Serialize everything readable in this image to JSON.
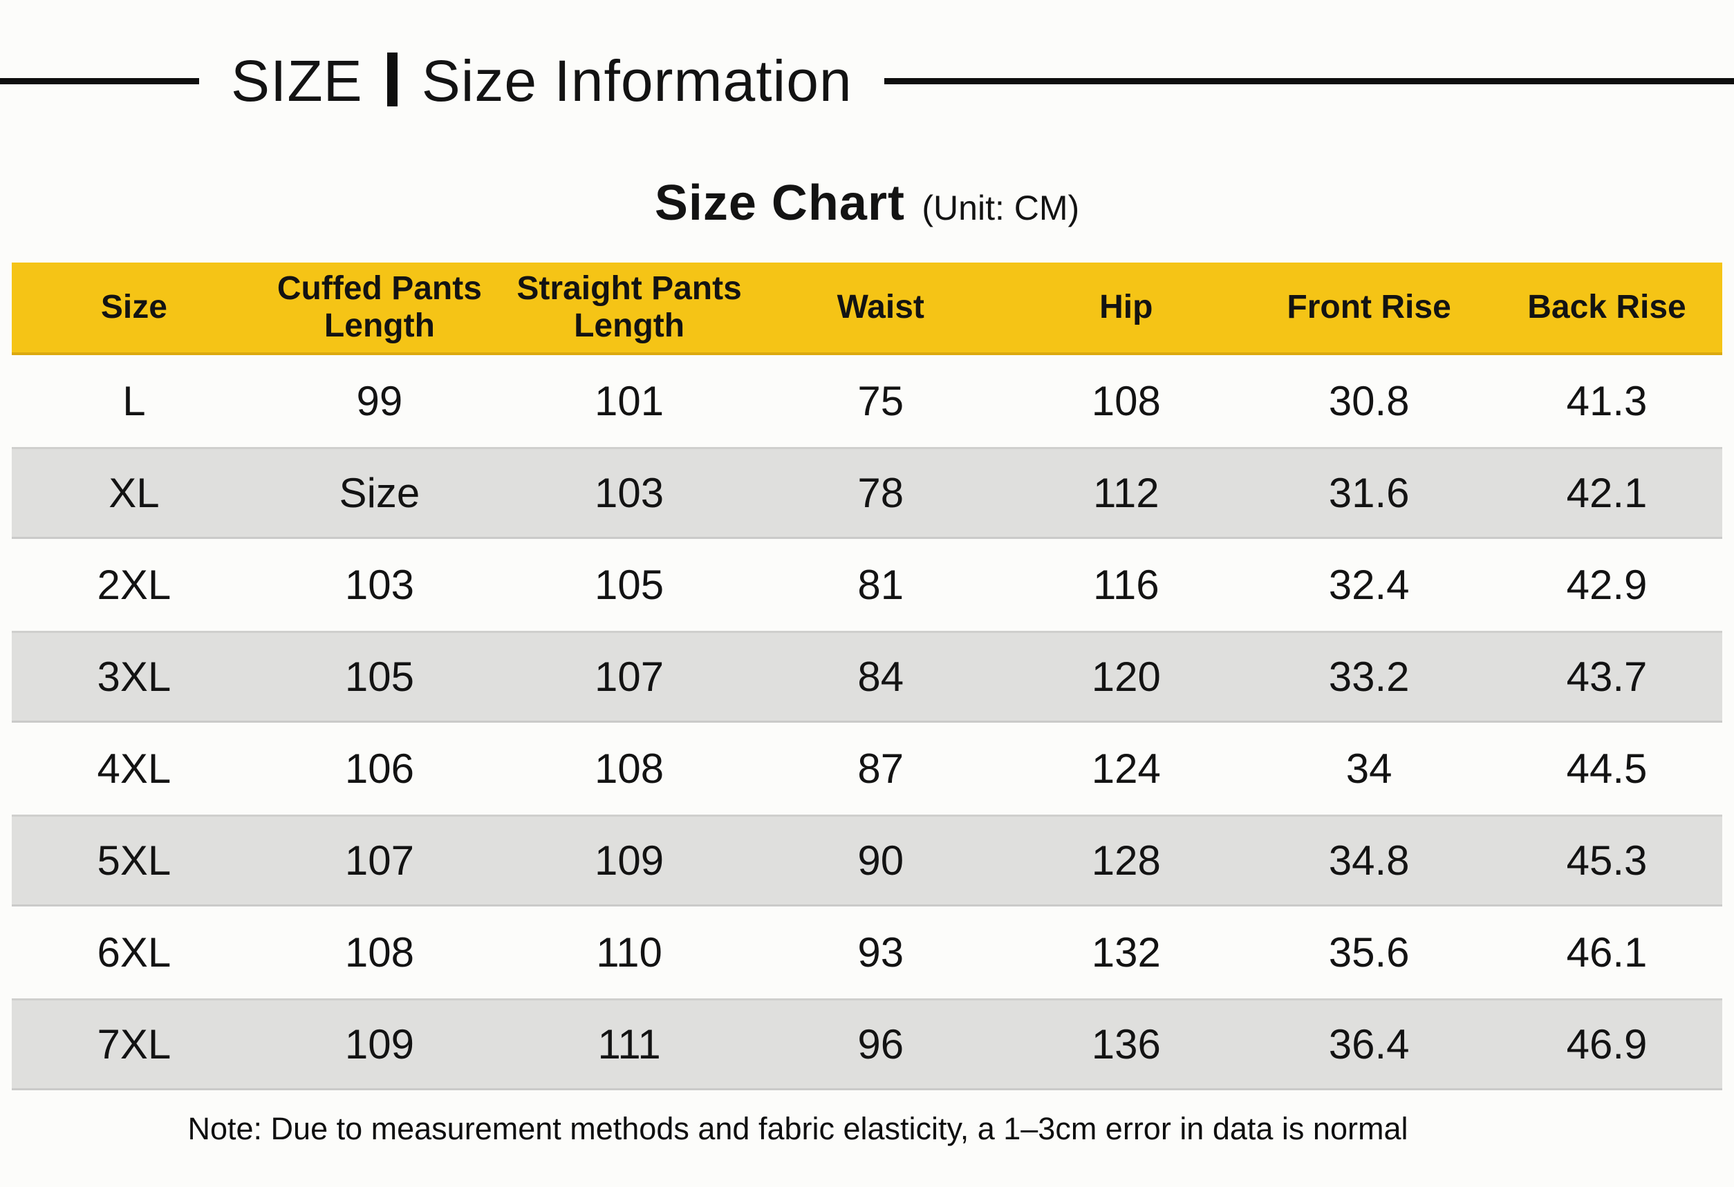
{
  "header": {
    "label_left": "SIZE",
    "label_right": "Size Information"
  },
  "chart_title": {
    "main": "Size Chart",
    "unit": "(Unit: CM)"
  },
  "chart_data": {
    "type": "table",
    "title": "Size Chart",
    "unit": "CM",
    "columns": [
      "Size",
      "Cuffed Pants Length",
      "Straight Pants Length",
      "Waist",
      "Hip",
      "Front Rise",
      "Back Rise"
    ],
    "rows": [
      [
        "L",
        "99",
        "101",
        "75",
        "108",
        "30.8",
        "41.3"
      ],
      [
        "XL",
        "Size",
        "103",
        "78",
        "112",
        "31.6",
        "42.1"
      ],
      [
        "2XL",
        "103",
        "105",
        "81",
        "116",
        "32.4",
        "42.9"
      ],
      [
        "3XL",
        "105",
        "107",
        "84",
        "120",
        "33.2",
        "43.7"
      ],
      [
        "4XL",
        "106",
        "108",
        "87",
        "124",
        "34",
        "44.5"
      ],
      [
        "5XL",
        "107",
        "109",
        "90",
        "128",
        "34.8",
        "45.3"
      ],
      [
        "6XL",
        "108",
        "110",
        "93",
        "132",
        "35.6",
        "46.1"
      ],
      [
        "7XL",
        "109",
        "111",
        "96",
        "136",
        "36.4",
        "46.9"
      ]
    ],
    "layout": {
      "header_row_style": "yellow",
      "zebra_striping": "white-gray alternating starting white",
      "grid": false
    }
  },
  "note": "Note: Due to measurement methods and fabric elasticity, a 1–3cm error in data is normal",
  "colors": {
    "header_bg": "#F5C416",
    "row_alt_bg": "#DFDFDD",
    "text": "#131313",
    "background": "#FCFCFA"
  }
}
